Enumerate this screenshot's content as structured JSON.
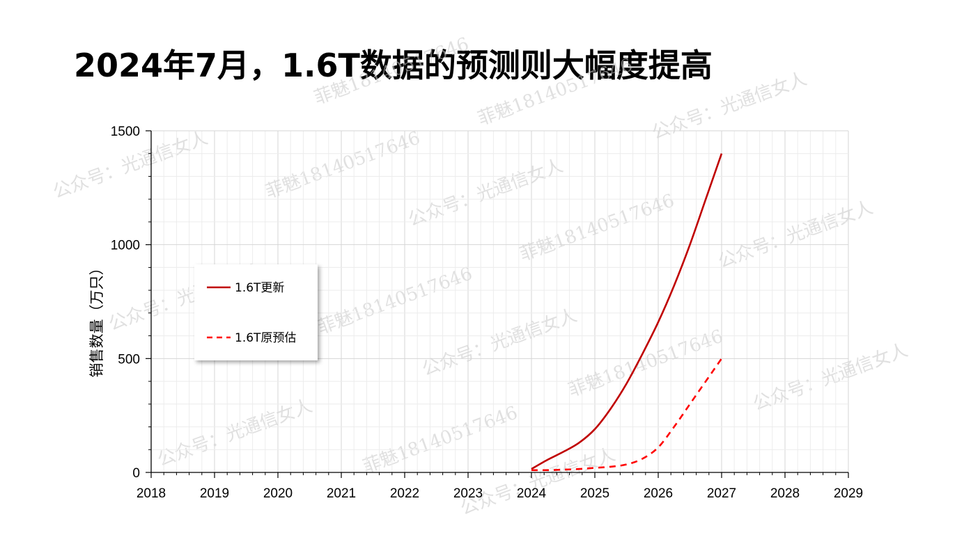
{
  "page": {
    "title": "2024年7月，1.6T数据的预测则大幅度提高"
  },
  "chart_data": {
    "type": "line",
    "ylabel": "销售数量（万只）",
    "xlabel": "",
    "xlim": [
      2018,
      2029
    ],
    "ylim": [
      0,
      1500
    ],
    "x_ticks": [
      "2018",
      "2019",
      "2020",
      "2021",
      "2022",
      "2023",
      "2024",
      "2025",
      "2026",
      "2027",
      "2028",
      "2029"
    ],
    "y_ticks": [
      "0",
      "500",
      "1000",
      "1500"
    ],
    "grid": true,
    "legend_position": "left",
    "series": [
      {
        "name": "1.6T更新",
        "style": "solid",
        "color": "#c00000",
        "x": [
          2024.0,
          2024.25,
          2024.5,
          2024.75,
          2025.0,
          2025.25,
          2025.5,
          2025.75,
          2026.0,
          2026.25,
          2026.5,
          2026.75,
          2027.0
        ],
        "y": [
          15,
          55,
          90,
          130,
          190,
          280,
          390,
          520,
          660,
          820,
          1000,
          1200,
          1400
        ]
      },
      {
        "name": "1.6T原预估",
        "style": "dashed",
        "color": "#ff0000",
        "x": [
          2024.0,
          2024.25,
          2024.5,
          2024.75,
          2025.0,
          2025.25,
          2025.5,
          2025.75,
          2026.0,
          2026.25,
          2026.5,
          2026.75,
          2027.0
        ],
        "y": [
          10,
          10,
          12,
          15,
          20,
          25,
          35,
          60,
          110,
          200,
          300,
          400,
          500
        ]
      }
    ]
  },
  "watermarks": [
    "公众号：光通信女人",
    "菲魅18140517646"
  ]
}
